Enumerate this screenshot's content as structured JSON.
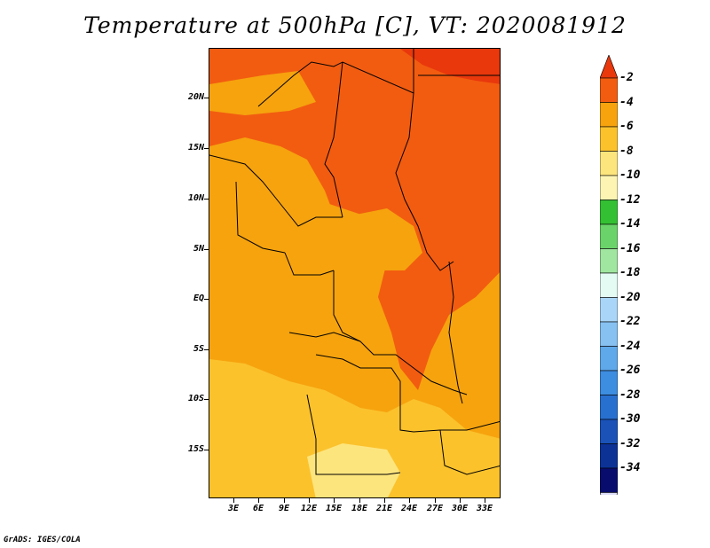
{
  "title": "Temperature at 500hPa [C], VT: 2020081912",
  "map": {
    "y_axis_labels": [
      "20N",
      "15N",
      "10N",
      "5N",
      "EQ",
      "5S",
      "10S",
      "15S"
    ],
    "x_axis_labels": [
      "3E",
      "6E",
      "9E",
      "12E",
      "15E",
      "18E",
      "21E",
      "24E",
      "27E",
      "30E",
      "33E"
    ]
  },
  "colorbar": {
    "labels": [
      "-2",
      "-4",
      "-6",
      "-8",
      "-10",
      "-12",
      "-14",
      "-16",
      "-18",
      "-20",
      "-22",
      "-24",
      "-26",
      "-28",
      "-30",
      "-32",
      "-34"
    ],
    "colors": [
      "#e8380c",
      "#f25c10",
      "#f6a30e",
      "#fbc22c",
      "#fde57e",
      "#fdf4b4",
      "#33c033",
      "#6ad46a",
      "#a0e5a0",
      "#e4fbf4",
      "#a9d6f8",
      "#86c1f2",
      "#5fa8ea",
      "#3d8de0",
      "#2870d0",
      "#1a52b8",
      "#0c3296",
      "#080c6c",
      "#dcdcf8"
    ]
  },
  "credit": "GrADS: IGES/COLA"
}
